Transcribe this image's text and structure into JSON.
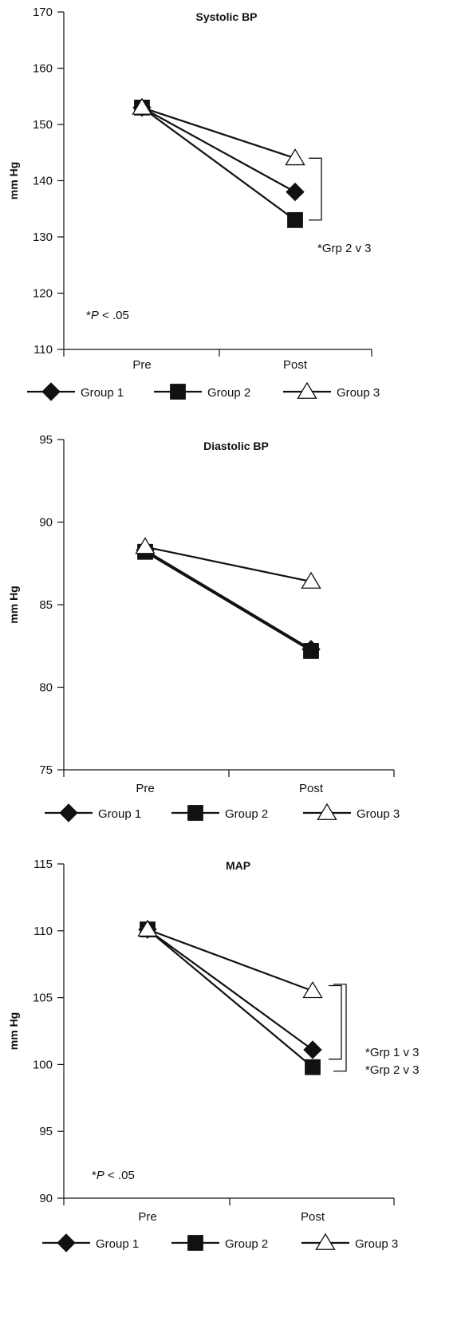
{
  "chart_data": [
    {
      "type": "line",
      "title": "Systolic BP",
      "ylabel": "mm Hg",
      "xlabel": "",
      "categories": [
        "Pre",
        "Post"
      ],
      "ylim": [
        110,
        170
      ],
      "yticks": [
        110,
        120,
        130,
        140,
        150,
        160,
        170
      ],
      "grid": false,
      "legend_placement": "bottom",
      "series": [
        {
          "name": "Group 1",
          "marker": "diamond",
          "values": [
            153,
            138
          ]
        },
        {
          "name": "Group 2",
          "marker": "square",
          "values": [
            153,
            133
          ]
        },
        {
          "name": "Group 3",
          "marker": "triangle-open",
          "values": [
            153,
            144
          ]
        }
      ],
      "note": {
        "prefix": "*",
        "italic": "P",
        "suffix": " < .05"
      },
      "brackets": [
        {
          "from": 144,
          "to": 133,
          "labels": [
            "*Grp 2 v 3"
          ]
        }
      ]
    },
    {
      "type": "line",
      "title": "Diastolic BP",
      "ylabel": "mm Hg",
      "xlabel": "",
      "categories": [
        "Pre",
        "Post"
      ],
      "ylim": [
        75,
        95
      ],
      "yticks": [
        75,
        80,
        85,
        90,
        95
      ],
      "grid": false,
      "legend_placement": "bottom",
      "series": [
        {
          "name": "Group 1",
          "marker": "diamond",
          "values": [
            88.3,
            82.3
          ]
        },
        {
          "name": "Group 2",
          "marker": "square",
          "values": [
            88.2,
            82.2
          ]
        },
        {
          "name": "Group 3",
          "marker": "triangle-open",
          "values": [
            88.5,
            86.4
          ]
        }
      ]
    },
    {
      "type": "line",
      "title": "MAP",
      "ylabel": "mm Hg",
      "xlabel": "",
      "categories": [
        "Pre",
        "Post"
      ],
      "ylim": [
        90,
        115
      ],
      "yticks": [
        90,
        95,
        100,
        105,
        110,
        115
      ],
      "grid": false,
      "legend_placement": "bottom",
      "series": [
        {
          "name": "Group 1",
          "marker": "diamond",
          "values": [
            110.1,
            101.1
          ]
        },
        {
          "name": "Group 2",
          "marker": "square",
          "values": [
            110.1,
            99.8
          ]
        },
        {
          "name": "Group 3",
          "marker": "triangle-open",
          "values": [
            110.1,
            105.5
          ]
        }
      ],
      "note": {
        "prefix": "*",
        "italic": "P",
        "suffix": " < .05"
      },
      "brackets": [
        {
          "from": 105.9,
          "to": 100.4,
          "labels": []
        },
        {
          "from": 106.0,
          "to": 99.5,
          "labels": [
            "*Grp 1 v 3",
            "*Grp 2 v 3"
          ]
        }
      ]
    }
  ]
}
